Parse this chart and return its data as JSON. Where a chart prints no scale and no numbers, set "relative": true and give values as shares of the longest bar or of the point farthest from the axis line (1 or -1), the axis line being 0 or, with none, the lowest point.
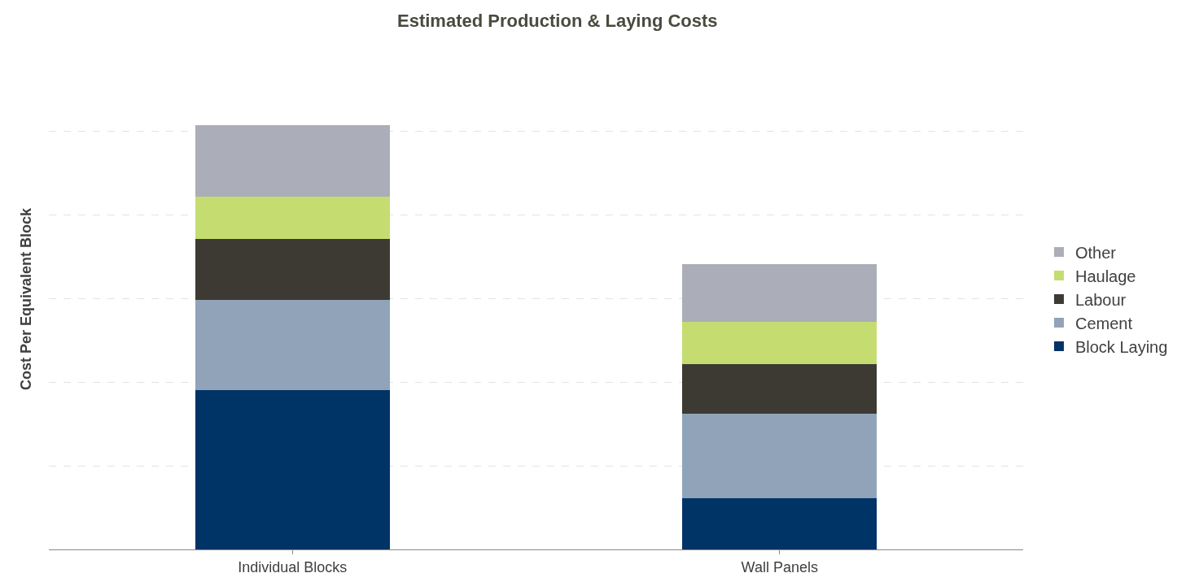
{
  "chart_data": {
    "type": "bar",
    "title": "Estimated Production & Laying Costs",
    "ylabel": "Cost Per Equivalent Block",
    "categories": [
      "Individual Blocks",
      "Wall Panels"
    ],
    "stacked": true,
    "relative": true,
    "grid": "y",
    "legend": "right",
    "series": [
      {
        "name": "Block Laying",
        "color": "#003366",
        "values": [
          0.375,
          0.121
        ]
      },
      {
        "name": "Cement",
        "color": "#91a3b9",
        "values": [
          0.213,
          0.199
        ]
      },
      {
        "name": "Labour",
        "color": "#3c3a33",
        "values": [
          0.143,
          0.117
        ]
      },
      {
        "name": "Haulage",
        "color": "#c5dd70",
        "values": [
          0.1,
          0.1
        ]
      },
      {
        "name": "Other",
        "color": "#abadb8",
        "values": [
          0.169,
          0.135
        ]
      }
    ]
  }
}
